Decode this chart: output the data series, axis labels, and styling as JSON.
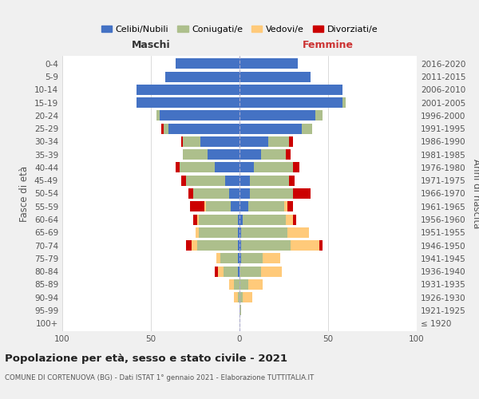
{
  "age_groups": [
    "100+",
    "95-99",
    "90-94",
    "85-89",
    "80-84",
    "75-79",
    "70-74",
    "65-69",
    "60-64",
    "55-59",
    "50-54",
    "45-49",
    "40-44",
    "35-39",
    "30-34",
    "25-29",
    "20-24",
    "15-19",
    "10-14",
    "5-9",
    "0-4"
  ],
  "birth_years": [
    "≤ 1920",
    "1921-1925",
    "1926-1930",
    "1931-1935",
    "1936-1940",
    "1941-1945",
    "1946-1950",
    "1951-1955",
    "1956-1960",
    "1961-1965",
    "1966-1970",
    "1971-1975",
    "1976-1980",
    "1981-1985",
    "1986-1990",
    "1991-1995",
    "1996-2000",
    "2001-2005",
    "2006-2010",
    "2011-2015",
    "2016-2020"
  ],
  "males": {
    "celibe": [
      0,
      0,
      0,
      0,
      1,
      1,
      1,
      1,
      1,
      5,
      6,
      8,
      14,
      18,
      22,
      40,
      45,
      58,
      58,
      42,
      36
    ],
    "coniugato": [
      0,
      0,
      1,
      3,
      8,
      10,
      23,
      22,
      22,
      14,
      20,
      22,
      20,
      14,
      10,
      3,
      2,
      0,
      0,
      0,
      0
    ],
    "vedovo": [
      0,
      0,
      2,
      3,
      3,
      2,
      3,
      2,
      1,
      1,
      0,
      0,
      0,
      0,
      0,
      0,
      0,
      0,
      0,
      0,
      0
    ],
    "divorziato": [
      0,
      0,
      0,
      0,
      2,
      0,
      3,
      0,
      2,
      8,
      3,
      3,
      2,
      0,
      1,
      1,
      0,
      0,
      0,
      0,
      0
    ]
  },
  "females": {
    "nubile": [
      0,
      0,
      0,
      0,
      0,
      1,
      1,
      1,
      2,
      5,
      6,
      6,
      8,
      12,
      16,
      35,
      43,
      58,
      58,
      40,
      33
    ],
    "coniugata": [
      0,
      1,
      2,
      5,
      12,
      12,
      28,
      26,
      24,
      20,
      24,
      22,
      22,
      14,
      12,
      6,
      4,
      2,
      0,
      0,
      0
    ],
    "vedova": [
      0,
      0,
      5,
      8,
      12,
      10,
      16,
      12,
      4,
      2,
      0,
      0,
      0,
      0,
      0,
      0,
      0,
      0,
      0,
      0,
      0
    ],
    "divorziata": [
      0,
      0,
      0,
      0,
      0,
      0,
      2,
      0,
      2,
      3,
      10,
      3,
      4,
      3,
      2,
      0,
      0,
      0,
      0,
      0,
      0
    ]
  },
  "colors": {
    "celibe": "#4472C4",
    "coniugato": "#ADBF8C",
    "vedovo": "#FFCA7A",
    "divorziato": "#CC0000"
  },
  "xlim": [
    -100,
    100
  ],
  "xticks": [
    -100,
    -50,
    0,
    50,
    100
  ],
  "xticklabels": [
    "100",
    "50",
    "0",
    "50",
    "100"
  ],
  "title": "Popolazione per età, sesso e stato civile - 2021",
  "subtitle": "COMUNE DI CORTENUOVA (BG) - Dati ISTAT 1° gennaio 2021 - Elaborazione TUTTITALIA.IT",
  "xlabel_left": "Maschi",
  "xlabel_right": "Femmine",
  "ylabel_left": "Fasce di età",
  "ylabel_right": "Anni di nascita",
  "bg_color": "#f0f0f0",
  "plot_bg_color": "#ffffff"
}
